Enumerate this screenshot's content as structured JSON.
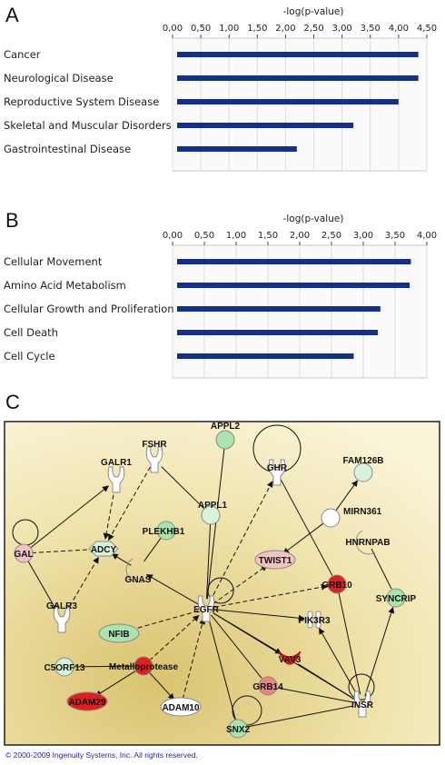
{
  "panels": {
    "a": "A",
    "b": "B",
    "c": "C"
  },
  "colors": {
    "bar": "#14308a",
    "up_strong": "#e02020",
    "up_mid": "#e88484",
    "up_light": "#f3c2c2",
    "down": "#a9e3b0",
    "down_light": "#d8f3dc",
    "neutral": "#ffffff",
    "bg": "#f0e4ae"
  },
  "chart_data": [
    {
      "type": "bar",
      "orientation": "horizontal",
      "panel": "A",
      "xlabel": "-log(p-value)",
      "xticks": [
        "0,00",
        "0,50",
        "1,00",
        "1,50",
        "2,00",
        "2,50",
        "3,00",
        "3,50",
        "4,00",
        "4,50"
      ],
      "xlim": [
        0,
        4.5
      ],
      "grid": true,
      "categories": [
        "Cancer",
        "Neurological Disease",
        "Reproductive System Disease",
        "Skeletal and Muscular Disorders",
        "Gastrointestinal Disease"
      ],
      "values": [
        4.35,
        4.35,
        4.0,
        3.2,
        2.2
      ]
    },
    {
      "type": "bar",
      "orientation": "horizontal",
      "panel": "B",
      "xlabel": "-log(p-value)",
      "xticks": [
        "0,00",
        "0,50",
        "1,00",
        "1,50",
        "2,00",
        "2,50",
        "3,00",
        "3,50",
        "4,00"
      ],
      "xlim": [
        0,
        4.0
      ],
      "grid": true,
      "categories": [
        "Cellular Movement",
        "Amino Acid Metabolism",
        "Cellular Growth and Proliferation",
        "Cell Death",
        "Cell Cycle"
      ],
      "values": [
        3.75,
        3.73,
        3.27,
        3.23,
        2.85
      ]
    }
  ],
  "network": {
    "nodes": [
      {
        "id": "FSHR",
        "label": "FSHR",
        "shape": "receptor",
        "color": "neutral"
      },
      {
        "id": "APPL2",
        "label": "APPL2",
        "shape": "circle",
        "color": "down"
      },
      {
        "id": "GHR",
        "label": "GHR",
        "shape": "receptor",
        "color": "neutral"
      },
      {
        "id": "GALR1",
        "label": "GALR1",
        "shape": "receptor",
        "color": "neutral"
      },
      {
        "id": "FAM126B",
        "label": "FAM126B",
        "shape": "circle",
        "color": "down_light"
      },
      {
        "id": "APPL1",
        "label": "APPL1",
        "shape": "circle",
        "color": "down_light"
      },
      {
        "id": "MIRN361",
        "label": "MIRN361",
        "shape": "circle",
        "color": "neutral"
      },
      {
        "id": "PLEKHB1",
        "label": "PLEKHB1",
        "shape": "circle",
        "color": "down"
      },
      {
        "id": "GAL",
        "label": "GAL",
        "shape": "circle",
        "color": "up_light"
      },
      {
        "id": "ADCY",
        "label": "ADCY",
        "shape": "diamond",
        "color": "down_light"
      },
      {
        "id": "HNRNPAB",
        "label": "HNRNPAB",
        "shape": "enzyme",
        "color": "neutral"
      },
      {
        "id": "GNAS",
        "label": "GNAS",
        "shape": "enzyme",
        "color": "neutral"
      },
      {
        "id": "TWIST1",
        "label": "TWIST1",
        "shape": "oval",
        "color": "up_light"
      },
      {
        "id": "GRB10",
        "label": "GRB10",
        "shape": "circle",
        "color": "up_strong"
      },
      {
        "id": "SYNCRIP",
        "label": "SYNCRIP",
        "shape": "circle",
        "color": "down"
      },
      {
        "id": "EGFR",
        "label": "EGFR",
        "shape": "receptor",
        "color": "neutral"
      },
      {
        "id": "GALR3",
        "label": "GALR3",
        "shape": "receptor",
        "color": "neutral"
      },
      {
        "id": "NFIB",
        "label": "NFIB",
        "shape": "oval",
        "color": "down"
      },
      {
        "id": "PIK3R3",
        "label": "PIK3R3",
        "shape": "kinase",
        "color": "neutral"
      },
      {
        "id": "VAV3",
        "label": "VAV3",
        "shape": "blob",
        "color": "up_strong"
      },
      {
        "id": "C5ORF13",
        "label": "C5ORF13",
        "shape": "circle",
        "color": "down_light"
      },
      {
        "id": "Metalloprotease",
        "label": "Metalloprotease",
        "shape": "circle",
        "color": "up_strong"
      },
      {
        "id": "GRB14",
        "label": "GRB14",
        "shape": "circle",
        "color": "up_mid"
      },
      {
        "id": "INSR",
        "label": "INSR",
        "shape": "receptor",
        "color": "neutral"
      },
      {
        "id": "ADAM29",
        "label": "ADAM29",
        "shape": "oval",
        "color": "up_strong"
      },
      {
        "id": "ADAM10",
        "label": "ADAM10",
        "shape": "oval",
        "color": "neutral"
      },
      {
        "id": "SNX2",
        "label": "SNX2",
        "shape": "circle",
        "color": "down"
      }
    ],
    "edges": [
      {
        "from": "GALR1",
        "to": "ADCY",
        "style": "dashed",
        "arrow": true
      },
      {
        "from": "FSHR",
        "to": "ADCY",
        "style": "dashed",
        "arrow": true
      },
      {
        "from": "GAL",
        "to": "GALR1",
        "style": "solid",
        "arrow": true
      },
      {
        "from": "GAL",
        "to": "ADCY",
        "style": "dashed",
        "arrow": false
      },
      {
        "from": "GAL",
        "to": "GALR3",
        "style": "solid",
        "arrow": true
      },
      {
        "from": "GALR3",
        "to": "ADCY",
        "style": "dashed",
        "arrow": true
      },
      {
        "from": "GNAS",
        "to": "ADCY",
        "style": "solid",
        "arrow": true
      },
      {
        "from": "PLEKHB1",
        "to": "GNAS",
        "style": "solid",
        "arrow": false
      },
      {
        "from": "APPL1",
        "to": "FSHR",
        "style": "solid",
        "arrow": false
      },
      {
        "from": "APPL1",
        "to": "EGFR",
        "style": "solid",
        "arrow": false
      },
      {
        "from": "APPL2",
        "to": "EGFR",
        "style": "solid",
        "arrow": false
      },
      {
        "from": "EGFR",
        "to": "GNAS",
        "style": "solid",
        "arrow": true
      },
      {
        "from": "EGFR",
        "to": "GHR",
        "style": "dashed",
        "arrow": true
      },
      {
        "from": "EGFR",
        "to": "TWIST1",
        "style": "dashed",
        "arrow": true
      },
      {
        "from": "EGFR",
        "to": "GRB10",
        "style": "dashed",
        "arrow": true
      },
      {
        "from": "EGFR",
        "to": "NFIB",
        "style": "dashed",
        "arrow": true
      },
      {
        "from": "EGFR",
        "to": "PIK3R3",
        "style": "solid",
        "arrow": true
      },
      {
        "from": "EGFR",
        "to": "VAV3",
        "style": "solid",
        "arrow": true
      },
      {
        "from": "EGFR",
        "to": "GRB14",
        "style": "solid",
        "arrow": false
      },
      {
        "from": "EGFR",
        "to": "SNX2",
        "style": "solid",
        "arrow": false
      },
      {
        "from": "EGFR",
        "to": "INSR",
        "style": "solid",
        "arrow": false
      },
      {
        "from": "Metalloprotease",
        "to": "EGFR",
        "style": "dashed",
        "arrow": true
      },
      {
        "from": "ADAM10",
        "to": "EGFR",
        "style": "dashed",
        "arrow": true
      },
      {
        "from": "Metalloprotease",
        "to": "C5ORF13",
        "style": "solid",
        "arrow": false
      },
      {
        "from": "Metalloprotease",
        "to": "ADAM29",
        "style": "solid",
        "arrow": true
      },
      {
        "from": "Metalloprotease",
        "to": "ADAM10",
        "style": "solid",
        "arrow": true
      },
      {
        "from": "MIRN361",
        "to": "FAM126B",
        "style": "solid",
        "arrow": true
      },
      {
        "from": "MIRN361",
        "to": "TWIST1",
        "style": "solid",
        "arrow": true
      },
      {
        "from": "GHR",
        "to": "GRB10",
        "style": "solid",
        "arrow": false
      },
      {
        "from": "GRB10",
        "to": "INSR",
        "style": "solid",
        "arrow": false
      },
      {
        "from": "HNRNPAB",
        "to": "SYNCRIP",
        "style": "solid",
        "arrow": false
      },
      {
        "from": "INSR",
        "to": "SYNCRIP",
        "style": "solid",
        "arrow": true
      },
      {
        "from": "INSR",
        "to": "PIK3R3",
        "style": "solid",
        "arrow": true
      },
      {
        "from": "INSR",
        "to": "GRB14",
        "style": "solid",
        "arrow": false
      },
      {
        "from": "INSR",
        "to": "VAV3",
        "style": "solid",
        "arrow": false
      },
      {
        "from": "SNX2",
        "to": "INSR",
        "style": "solid",
        "arrow": false
      }
    ]
  },
  "footer": "© 2000-2009 Ingenuity Systems, Inc. All rights reserved."
}
